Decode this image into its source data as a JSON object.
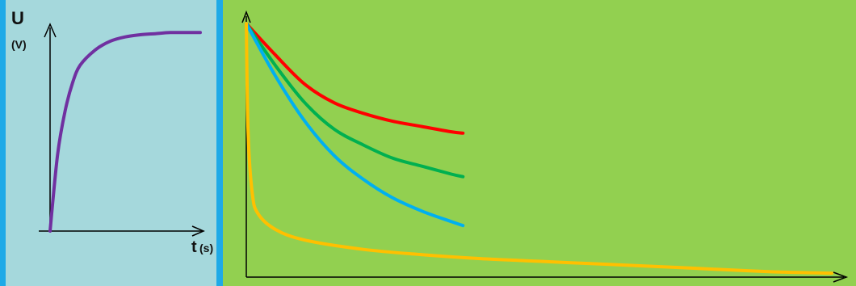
{
  "colors": {
    "left_panel_bg": "#a5d8dc",
    "right_panel_bg": "#92d050",
    "border": "#1eaae7",
    "axis": "#000000"
  },
  "left_chart": {
    "y_label": "U",
    "y_unit": "(V)",
    "x_label_main": "t",
    "x_label_unit": "(s)"
  },
  "chart_data": [
    {
      "type": "line",
      "title": "",
      "ylabel": "U (V)",
      "xlabel": "t(s)",
      "grid": false,
      "legend": "none",
      "xlim": [
        0,
        1
      ],
      "ylim": [
        0,
        1
      ],
      "series": [
        {
          "color": "#7030a0",
          "x": [
            0,
            0.05,
            0.1,
            0.15,
            0.2,
            0.3,
            0.4,
            0.5,
            0.6,
            0.7,
            0.8,
            0.9,
            1.0
          ],
          "y": [
            0,
            0.35,
            0.55,
            0.68,
            0.76,
            0.83,
            0.87,
            0.89,
            0.9,
            0.905,
            0.91,
            0.91,
            0.91
          ]
        }
      ]
    },
    {
      "type": "line",
      "title": "",
      "xlabel": "",
      "ylabel": "",
      "grid": false,
      "legend": "none",
      "xlim": [
        0,
        10
      ],
      "ylim": [
        0,
        10
      ],
      "series": [
        {
          "color": "#ff0000",
          "x": [
            0,
            0.5,
            1,
            1.5,
            2,
            2.5,
            3,
            3.5,
            3.7
          ],
          "y": [
            9.6,
            8.4,
            7.3,
            6.6,
            6.2,
            5.9,
            5.7,
            5.5,
            5.45
          ]
        },
        {
          "color": "#00b050",
          "x": [
            0,
            0.5,
            1,
            1.5,
            2,
            2.5,
            3,
            3.5,
            3.7
          ],
          "y": [
            9.6,
            8.0,
            6.6,
            5.6,
            5.0,
            4.5,
            4.2,
            3.9,
            3.8
          ]
        },
        {
          "color": "#00b0f0",
          "x": [
            0,
            0.5,
            1,
            1.5,
            2,
            2.5,
            3,
            3.5,
            3.7
          ],
          "y": [
            9.6,
            7.6,
            5.9,
            4.6,
            3.7,
            3.0,
            2.5,
            2.1,
            1.95
          ]
        },
        {
          "color": "#ffc000",
          "x": [
            0,
            0.03,
            0.1,
            0.2,
            0.5,
            1,
            2,
            3,
            4,
            5,
            6,
            7,
            8,
            9,
            10
          ],
          "y": [
            9.6,
            5.5,
            3.2,
            2.4,
            1.8,
            1.4,
            1.05,
            0.85,
            0.7,
            0.6,
            0.5,
            0.4,
            0.3,
            0.2,
            0.15
          ]
        }
      ]
    }
  ]
}
